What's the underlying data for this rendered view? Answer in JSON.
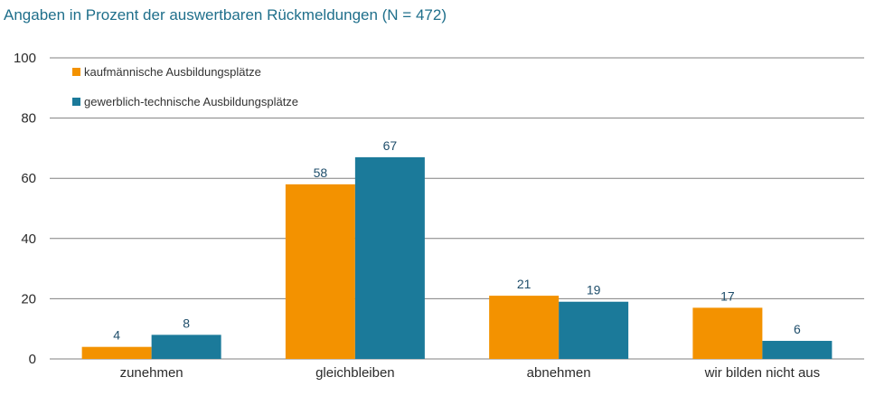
{
  "chart_data": {
    "type": "bar",
    "title": "Angaben in Prozent der auswertbaren Rückmeldungen (N = 472)",
    "xlabel": "",
    "ylabel": "",
    "categories": [
      "zunehmen",
      "gleichbleiben",
      "abnehmen",
      "wir bilden nicht aus"
    ],
    "series": [
      {
        "name": "kaufmännische Ausbildungsplätze",
        "values": [
          4,
          58,
          21,
          17
        ],
        "color": "#f39200"
      },
      {
        "name": "gewerblich-technische Ausbildungsplätze",
        "values": [
          8,
          67,
          19,
          6
        ],
        "color": "#1b7a9a"
      }
    ],
    "ylim": [
      0,
      100
    ],
    "yticks": [
      0,
      20,
      40,
      60,
      80,
      100
    ],
    "grid": true,
    "legend_position": "top-left",
    "data_labels": [
      [
        "4",
        "58",
        "21",
        "17"
      ],
      [
        "8",
        "67",
        "19",
        "6"
      ]
    ],
    "colors": {
      "title": "#1f6f8b",
      "grid": "#808080",
      "axis": "#808080",
      "data_label": "#1f4e6b"
    }
  }
}
